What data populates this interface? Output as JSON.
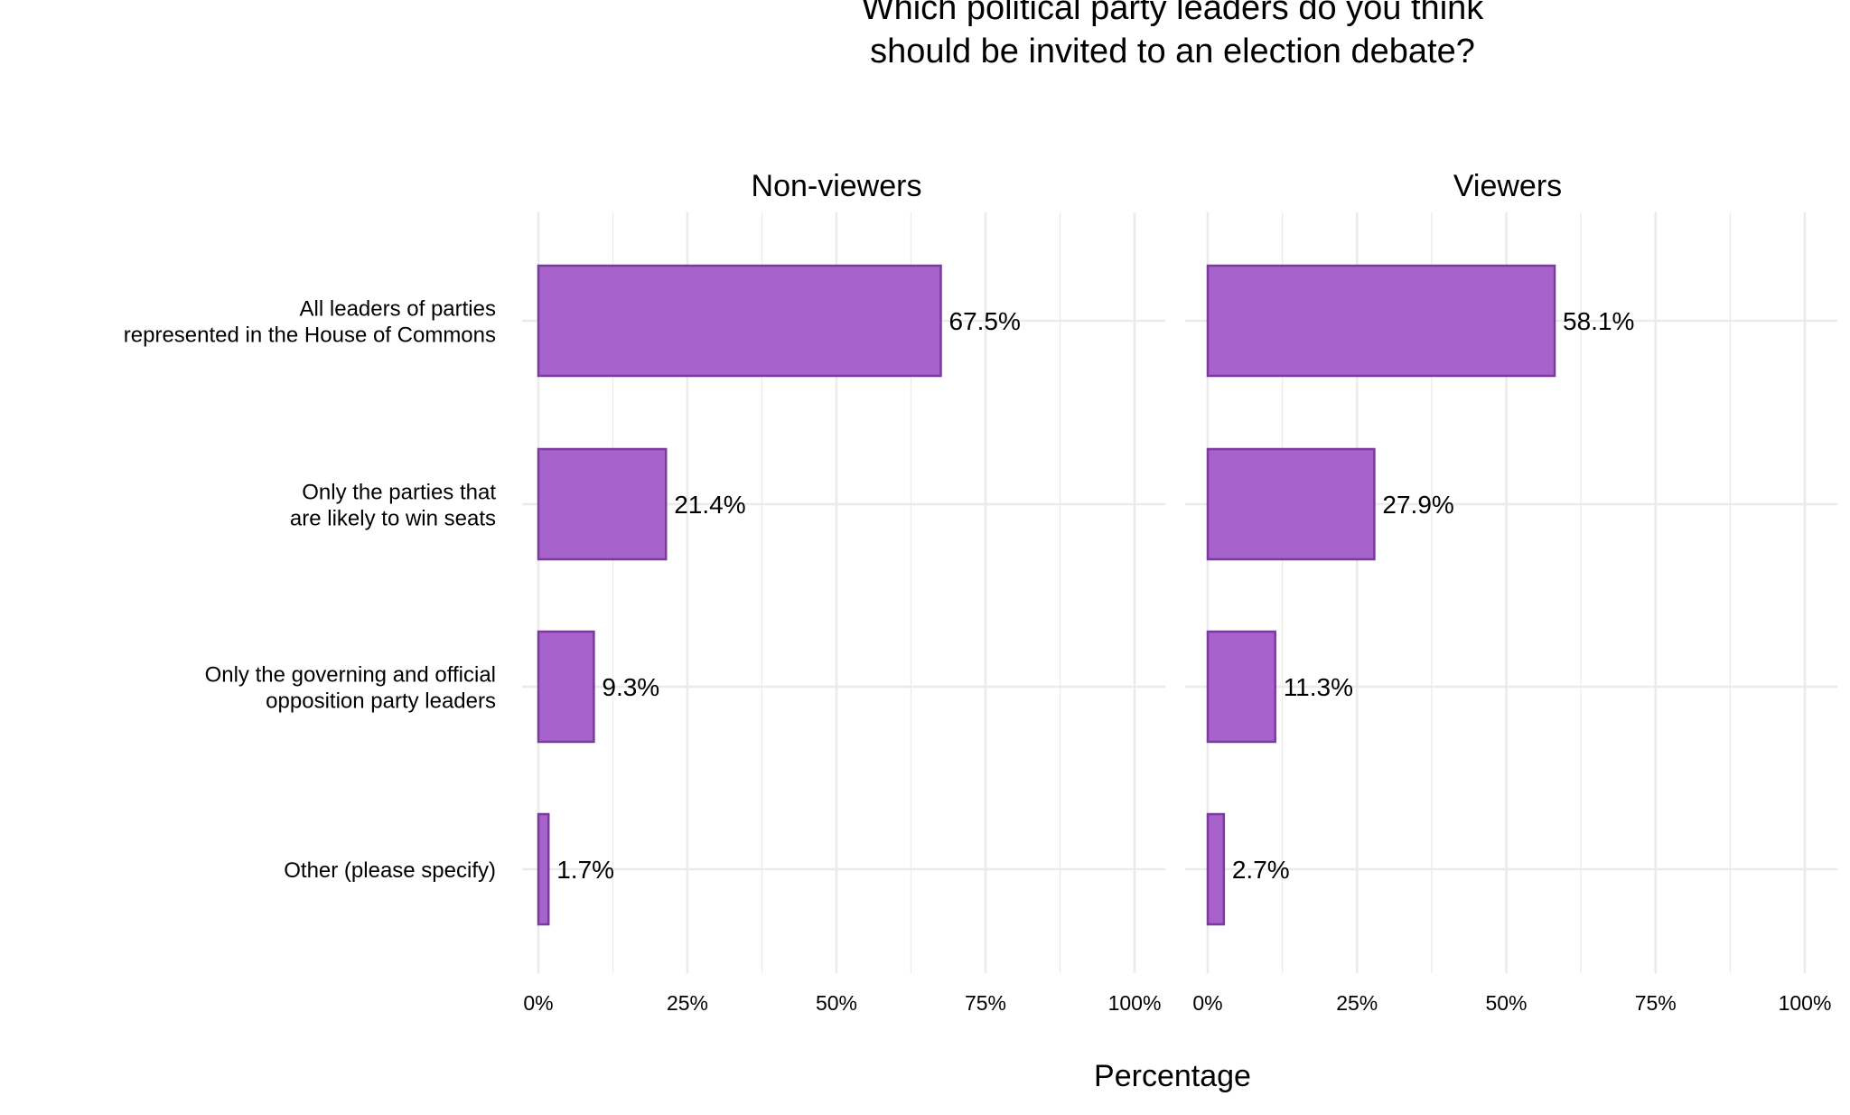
{
  "chart_data": {
    "type": "bar",
    "orientation": "horizontal",
    "title": "Which political party leaders do you think\nshould be invited to an election debate?",
    "xlabel": "Percentage",
    "ylabel": "",
    "xlim": [
      0,
      100
    ],
    "x_ticks": [
      "0%",
      "25%",
      "50%",
      "75%",
      "100%"
    ],
    "grid": true,
    "categories": [
      "All leaders of parties\nrepresented in the House of Commons",
      "Only the parties that\nare likely to win seats",
      "Only the governing and official\nopposition party leaders",
      "Other (please specify)"
    ],
    "facets": [
      {
        "name": "Non-viewers",
        "values": [
          67.5,
          21.4,
          9.3,
          1.7
        ],
        "labels": [
          "67.5%",
          "21.4%",
          "9.3%",
          "1.7%"
        ]
      },
      {
        "name": "Viewers",
        "values": [
          58.1,
          27.9,
          11.3,
          2.7
        ],
        "labels": [
          "58.1%",
          "27.9%",
          "11.3%",
          "2.7%"
        ]
      }
    ],
    "colors": {
      "fill": "#A763CB",
      "stroke": "#7B3A9E",
      "grid": "#EBEBEB"
    }
  }
}
